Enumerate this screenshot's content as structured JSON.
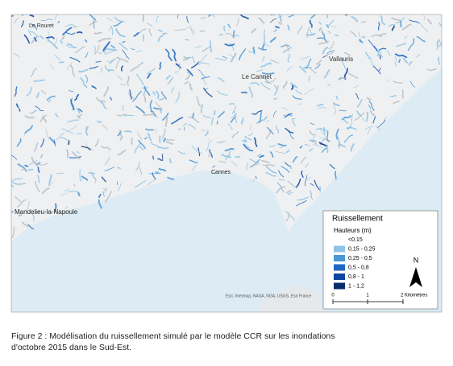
{
  "places": [
    "Le Rouret",
    "Vallauris",
    "Le Cannet",
    "Mandelieu-la-Napoule",
    "Cannes"
  ],
  "legend": {
    "title": "Ruissellement",
    "subtitle": "Hauteurs (m)",
    "classes": [
      {
        "label": "<0.15",
        "color": "#ffffff"
      },
      {
        "label": "0,15 - 0,25",
        "color": "#8ec3e6"
      },
      {
        "label": "0,25 - 0,5",
        "color": "#4a98d6"
      },
      {
        "label": "0,5 - 0,8",
        "color": "#1f66c0"
      },
      {
        "label": "0,8 - 1",
        "color": "#0c46a0"
      },
      {
        "label": "1 - 1,2",
        "color": "#062d6e"
      }
    ]
  },
  "north": "N",
  "scale": [
    "0",
    "1",
    "2 Kilomètres"
  ],
  "attribution": "Esri, Intermap, NASA, NGA, USGS, Esri France",
  "caption": [
    "Figure 2 : Modélisation du ruissellement simulé par le modèle CCR sur les inondations",
    "d'octobre 2015 dans le Sud-Est."
  ]
}
